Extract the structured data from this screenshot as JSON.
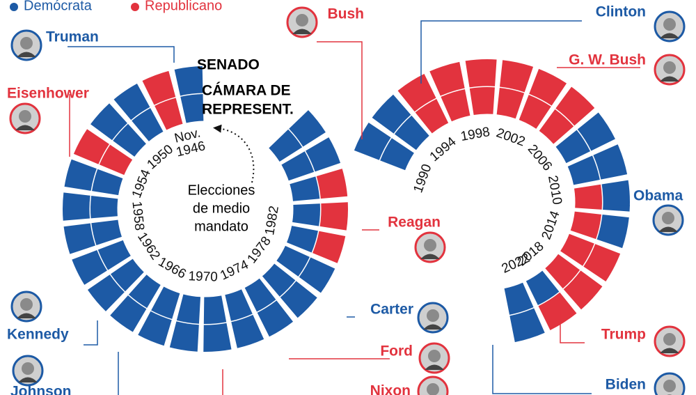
{
  "parties": {
    "D": {
      "label": "Demócrata",
      "color": "#1d5aa5"
    },
    "R": {
      "label": "Republicano",
      "color": "#e2333e"
    }
  },
  "labels": {
    "senate": "SENADO",
    "house": [
      "CÁMARA DE",
      "REPRESENT."
    ],
    "note": [
      "Elecciones",
      "de medio",
      "mandato"
    ]
  },
  "elections": [
    {
      "senate": "D",
      "house": "D"
    },
    {
      "senate": "R",
      "house": "R"
    },
    {
      "senate": "D",
      "house": "D"
    },
    {
      "senate": "D",
      "house": "D"
    },
    {
      "senate": "R",
      "house": "R"
    },
    {
      "senate": "D",
      "house": "D"
    },
    {
      "senate": "D",
      "house": "D"
    },
    {
      "senate": "D",
      "house": "D"
    },
    {
      "senate": "D",
      "house": "D"
    },
    {
      "senate": "D",
      "house": "D"
    },
    {
      "senate": "D",
      "house": "D"
    },
    {
      "senate": "D",
      "house": "D"
    },
    {
      "senate": "D",
      "house": "D"
    },
    {
      "senate": "D",
      "house": "D"
    },
    {
      "senate": "D",
      "house": "D"
    },
    {
      "senate": "D",
      "house": "D"
    },
    {
      "senate": "D",
      "house": "D"
    },
    {
      "senate": "D",
      "house": "D"
    },
    {
      "senate": "R",
      "house": "D"
    },
    {
      "senate": "R",
      "house": "D"
    },
    {
      "senate": "R",
      "house": "D"
    },
    {
      "senate": "D",
      "house": "D"
    },
    {
      "senate": "D",
      "house": "D"
    },
    {
      "senate": "D",
      "house": "D"
    },
    {
      "senate": "D",
      "house": "D"
    },
    {
      "senate": "R",
      "house": "R"
    },
    {
      "senate": "R",
      "house": "R"
    },
    {
      "senate": "R",
      "house": "R"
    },
    {
      "senate": "R",
      "house": "R"
    },
    {
      "senate": "R",
      "house": "R"
    },
    {
      "senate": "R",
      "house": "R"
    },
    {
      "senate": "D",
      "house": "D"
    },
    {
      "senate": "D",
      "house": "D"
    },
    {
      "senate": "D",
      "house": "R"
    },
    {
      "senate": "D",
      "house": "R"
    },
    {
      "senate": "R",
      "house": "R"
    },
    {
      "senate": "R",
      "house": "R"
    },
    {
      "senate": "R",
      "house": "D"
    },
    {
      "senate": "D",
      "house": "D"
    }
  ],
  "year_labels": [
    "Nov. 1946",
    "1950",
    "1954",
    "1958",
    "1962",
    "1966",
    "1970",
    "1974",
    "1978",
    "1982",
    "1990",
    "1994",
    "1998",
    "2002",
    "2006",
    "2010",
    "2014",
    "2018",
    "2022"
  ],
  "presidents": [
    {
      "name": "Truman",
      "party": "D"
    },
    {
      "name": "Eisenhower",
      "party": "R"
    },
    {
      "name": "Kennedy",
      "party": "D"
    },
    {
      "name": "Johnson",
      "party": "D"
    },
    {
      "name": "Nixon",
      "party": "R"
    },
    {
      "name": "Ford",
      "party": "R"
    },
    {
      "name": "Carter",
      "party": "D"
    },
    {
      "name": "Reagan",
      "party": "R"
    },
    {
      "name": "Bush",
      "party": "R"
    },
    {
      "name": "Clinton",
      "party": "D"
    },
    {
      "name": "G. W. Bush",
      "party": "R"
    },
    {
      "name": "Obama",
      "party": "D"
    },
    {
      "name": "Trump",
      "party": "R"
    },
    {
      "name": "Biden",
      "party": "D"
    }
  ]
}
